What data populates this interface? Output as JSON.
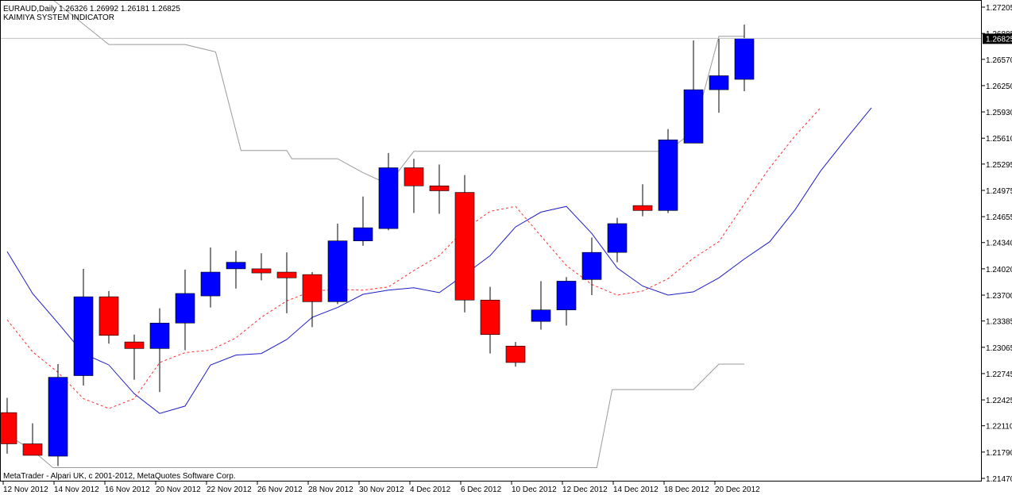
{
  "header": {
    "title_line": "EURAUD,Daily  1.26326 1.26992 1.26181 1.26825",
    "indicator_name": "KAIMIYA SYSTEM INDICATOR"
  },
  "footer": {
    "copyright": "MetaTrader - Alpari UK, c 2001-2012, MetaQuotes Software Corp."
  },
  "colors": {
    "bull": "#0000ff",
    "bear": "#ff0000",
    "blue_line": "#1c1cc8",
    "red_dash": "#ff3030",
    "gray_line": "#9a9a9a",
    "price_line": "#c0c0c0",
    "current_price_bg": "#000000"
  },
  "chart_data": {
    "type": "candlestick",
    "symbol": "EURAUD",
    "timeframe": "Daily",
    "ohlc_last": {
      "open": 1.26326,
      "high": 1.26992,
      "low": 1.26181,
      "close": 1.26825
    },
    "current_price": "1.26825",
    "y_ticks": [
      "1.27205",
      "1.26885",
      "1.26570",
      "1.26250",
      "1.25930",
      "1.25610",
      "1.25295",
      "1.24975",
      "1.24655",
      "1.24340",
      "1.24020",
      "1.23700",
      "1.23385",
      "1.23065",
      "1.22745",
      "1.22425",
      "1.22110",
      "1.21790",
      "1.21470"
    ],
    "ylim": [
      1.2147,
      1.27205
    ],
    "x_ticks": [
      {
        "label": "12 Nov 2012",
        "index": 0
      },
      {
        "label": "14 Nov 2012",
        "index": 2
      },
      {
        "label": "16 Nov 2012",
        "index": 4
      },
      {
        "label": "20 Nov 2012",
        "index": 6
      },
      {
        "label": "22 Nov 2012",
        "index": 8
      },
      {
        "label": "26 Nov 2012",
        "index": 10
      },
      {
        "label": "28 Nov 2012",
        "index": 12
      },
      {
        "label": "30 Nov 2012",
        "index": 14
      },
      {
        "label": "4 Dec 2012",
        "index": 16
      },
      {
        "label": "6 Dec 2012",
        "index": 18
      },
      {
        "label": "10 Dec 2012",
        "index": 20
      },
      {
        "label": "12 Dec 2012",
        "index": 22
      },
      {
        "label": "14 Dec 2012",
        "index": 24
      },
      {
        "label": "18 Dec 2012",
        "index": 26
      },
      {
        "label": "20 Dec 2012",
        "index": 28
      }
    ],
    "candles": [
      {
        "o": 1.2227,
        "h": 1.2245,
        "l": 1.2177,
        "c": 1.2189
      },
      {
        "o": 1.2189,
        "h": 1.2214,
        "l": 1.2175,
        "c": 1.2175
      },
      {
        "o": 1.2174,
        "h": 1.2286,
        "l": 1.2162,
        "c": 1.227
      },
      {
        "o": 1.2272,
        "h": 1.2402,
        "l": 1.226,
        "c": 1.2368
      },
      {
        "o": 1.2368,
        "h": 1.2375,
        "l": 1.2311,
        "c": 1.2321
      },
      {
        "o": 1.2313,
        "h": 1.2322,
        "l": 1.2267,
        "c": 1.2305
      },
      {
        "o": 1.2305,
        "h": 1.2354,
        "l": 1.2252,
        "c": 1.2336
      },
      {
        "o": 1.2336,
        "h": 1.2401,
        "l": 1.2303,
        "c": 1.2372
      },
      {
        "o": 1.2369,
        "h": 1.2428,
        "l": 1.2355,
        "c": 1.2398
      },
      {
        "o": 1.2402,
        "h": 1.2424,
        "l": 1.2378,
        "c": 1.241
      },
      {
        "o": 1.2402,
        "h": 1.2421,
        "l": 1.2388,
        "c": 1.2397
      },
      {
        "o": 1.2398,
        "h": 1.2422,
        "l": 1.2348,
        "c": 1.2391
      },
      {
        "o": 1.2395,
        "h": 1.2398,
        "l": 1.2331,
        "c": 1.2362
      },
      {
        "o": 1.2362,
        "h": 1.2457,
        "l": 1.2359,
        "c": 1.2436
      },
      {
        "o": 1.2436,
        "h": 1.249,
        "l": 1.243,
        "c": 1.2452
      },
      {
        "o": 1.2451,
        "h": 1.2543,
        "l": 1.2449,
        "c": 1.2525
      },
      {
        "o": 1.2525,
        "h": 1.2536,
        "l": 1.247,
        "c": 1.2503
      },
      {
        "o": 1.2503,
        "h": 1.2529,
        "l": 1.2469,
        "c": 1.2497
      },
      {
        "o": 1.2495,
        "h": 1.2516,
        "l": 1.2349,
        "c": 1.2364
      },
      {
        "o": 1.2364,
        "h": 1.238,
        "l": 1.2299,
        "c": 1.2322
      },
      {
        "o": 1.2308,
        "h": 1.2313,
        "l": 1.2283,
        "c": 1.2288
      },
      {
        "o": 1.2338,
        "h": 1.2387,
        "l": 1.2328,
        "c": 1.2352
      },
      {
        "o": 1.2352,
        "h": 1.2392,
        "l": 1.2333,
        "c": 1.2387
      },
      {
        "o": 1.2389,
        "h": 1.244,
        "l": 1.237,
        "c": 1.2422
      },
      {
        "o": 1.2422,
        "h": 1.2464,
        "l": 1.241,
        "c": 1.2457
      },
      {
        "o": 1.2479,
        "h": 1.2505,
        "l": 1.2466,
        "c": 1.2473
      },
      {
        "o": 1.2473,
        "h": 1.2572,
        "l": 1.247,
        "c": 1.2559
      },
      {
        "o": 1.2555,
        "h": 1.268,
        "l": 1.2555,
        "c": 1.262
      },
      {
        "o": 1.262,
        "h": 1.2682,
        "l": 1.2592,
        "c": 1.2637
      },
      {
        "o": 1.26326,
        "h": 1.26992,
        "l": 1.26181,
        "c": 1.26825
      }
    ],
    "series": [
      {
        "style": "solid-blue",
        "values": [
          1.2423,
          1.2372,
          1.2336,
          1.2299,
          1.2285,
          1.225,
          1.2226,
          1.2235,
          1.2285,
          1.2297,
          1.2299,
          1.2316,
          1.2343,
          1.2355,
          1.2371,
          1.2376,
          1.2379,
          1.2373,
          1.2395,
          1.2418,
          1.2453,
          1.2471,
          1.2478,
          1.2445,
          1.2403,
          1.2381,
          1.237,
          1.2374,
          1.2391,
          1.2414,
          1.2435,
          1.2474,
          1.2521,
          1.256,
          1.2598
        ]
      },
      {
        "style": "dashed-red",
        "values": [
          1.234,
          1.2301,
          1.2276,
          1.2244,
          1.2232,
          1.2244,
          1.2288,
          1.23,
          1.2303,
          1.2318,
          1.2343,
          1.2363,
          1.2375,
          1.2377,
          1.2376,
          1.238,
          1.24,
          1.2418,
          1.245,
          1.2472,
          1.2478,
          1.2442,
          1.2406,
          1.2383,
          1.237,
          1.2375,
          1.239,
          1.2415,
          1.2435,
          1.2481,
          1.2525,
          1.2564,
          1.2598
        ]
      },
      {
        "style": "gray-stepped",
        "points": [
          [
            1.7,
            1.2732
          ],
          [
            4.0,
            1.2675
          ],
          [
            7.0,
            1.2675
          ],
          [
            8.2,
            1.2666
          ],
          [
            9.2,
            1.2546
          ],
          [
            11.0,
            1.2546
          ],
          [
            11.2,
            1.2536
          ],
          [
            13.0,
            1.2536
          ],
          [
            14.0,
            1.2519
          ],
          [
            15.0,
            1.2505
          ],
          [
            16.0,
            1.2545
          ],
          [
            16.5,
            1.2545
          ],
          [
            26.0,
            1.2545
          ],
          [
            27.0,
            1.257
          ],
          [
            28.0,
            1.2685
          ],
          [
            29.0,
            1.2685
          ]
        ]
      },
      {
        "style": "gray-lower",
        "points": [
          [
            0,
            1.22
          ],
          [
            1,
            1.2181
          ],
          [
            1.8,
            1.216
          ],
          [
            23.0,
            1.216
          ],
          [
            23.2,
            1.216
          ],
          [
            23.8,
            1.2255
          ],
          [
            27.0,
            1.2255
          ],
          [
            28.0,
            1.2286
          ],
          [
            29.0,
            1.2286
          ]
        ]
      }
    ]
  }
}
